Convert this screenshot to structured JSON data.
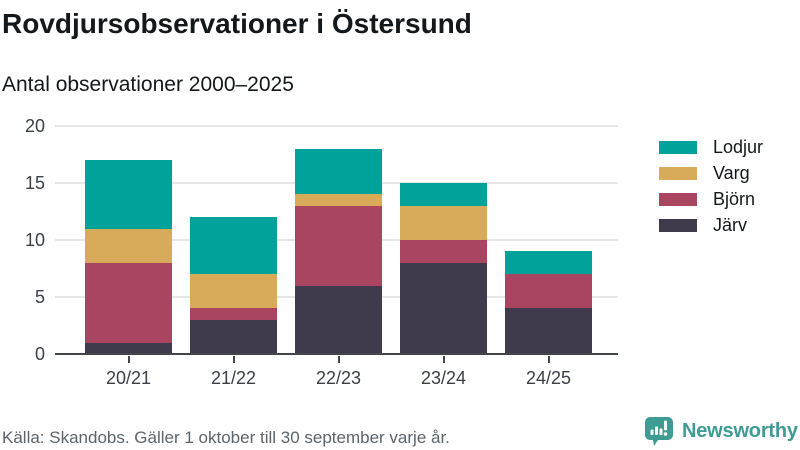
{
  "header": {
    "title": "Rovdjursobservationer i Östersund",
    "subtitle": "Antal observationer 2000–2025"
  },
  "chart_data": {
    "type": "bar",
    "stacked": true,
    "title": "Rovdjursobservationer i Östersund",
    "subtitle": "Antal observationer 2000–2025",
    "categories": [
      "20/21",
      "21/22",
      "22/23",
      "23/24",
      "24/25"
    ],
    "series": [
      {
        "name": "Järv",
        "color": "#3f3b4c",
        "values": [
          1,
          3,
          6,
          8,
          4
        ]
      },
      {
        "name": "Björn",
        "color": "#a94561",
        "values": [
          7,
          1,
          7,
          2,
          3
        ]
      },
      {
        "name": "Varg",
        "color": "#d8ab5b",
        "values": [
          3,
          3,
          1,
          3,
          0
        ]
      },
      {
        "name": "Lodjur",
        "color": "#00a29a",
        "values": [
          6,
          5,
          4,
          2,
          2
        ]
      }
    ],
    "totals": [
      17,
      12,
      18,
      15,
      9
    ],
    "xlabel": "",
    "ylabel": "",
    "ylim": [
      0,
      20
    ],
    "yticks": [
      0,
      5,
      10,
      15,
      20
    ],
    "grid": true,
    "legend_position": "right",
    "legend_order": [
      "Lodjur",
      "Varg",
      "Björn",
      "Järv"
    ]
  },
  "footer": {
    "source": "Källa: Skandobs. Gäller 1 oktober till 30 september varje år.",
    "brand": "Newsworthy"
  },
  "colors": {
    "accent_teal": "#00a29a",
    "gold": "#d8ab5b",
    "raspberry": "#a94561",
    "dark": "#3f3b4c",
    "brand_teal": "#3e9c94",
    "grid": "#e5e6e8",
    "axis": "#43464d",
    "text_dark": "#15181a",
    "text_muted": "#5c646c"
  }
}
